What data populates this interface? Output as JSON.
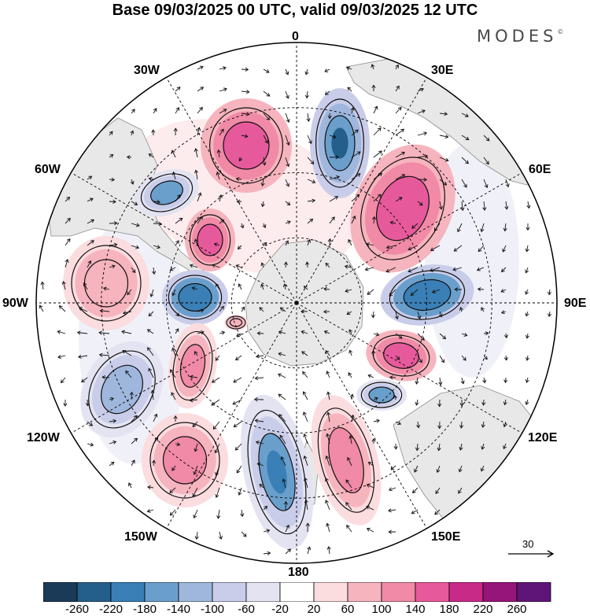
{
  "title": "Base 09/03/2025 00 UTC, valid 09/03/2025 12 UTC",
  "brand": {
    "name": "MODES",
    "mark": "©"
  },
  "longitudes": {
    "lon_0": "0",
    "lon_30e": "30E",
    "lon_60e": "60E",
    "lon_90e": "90E",
    "lon_120e": "120E",
    "lon_150e": "150E",
    "lon_180": "180",
    "lon_150w": "150W",
    "lon_120w": "120W",
    "lon_90w": "90W",
    "lon_60w": "60W",
    "lon_30w": "30W"
  },
  "vector_scale": {
    "label": "30"
  },
  "colorbar": {
    "colors": [
      "#1b3a57",
      "#245f8c",
      "#3a7fb6",
      "#6a9fcc",
      "#9fb7dc",
      "#c9cde9",
      "#e3e3f2",
      "#ffffff",
      "#fbdcdf",
      "#f6b4be",
      "#f08aa6",
      "#e65a9c",
      "#c82a88",
      "#95157a",
      "#5e1577"
    ],
    "tick_labels": [
      "-260",
      "-220",
      "-180",
      "-140",
      "-100",
      "-60",
      "-20",
      "20",
      "60",
      "100",
      "140",
      "180",
      "220",
      "260"
    ]
  },
  "colors": {
    "land": "#e8e8e8",
    "coast": "#8c8c8c",
    "grid": "#000000"
  }
}
